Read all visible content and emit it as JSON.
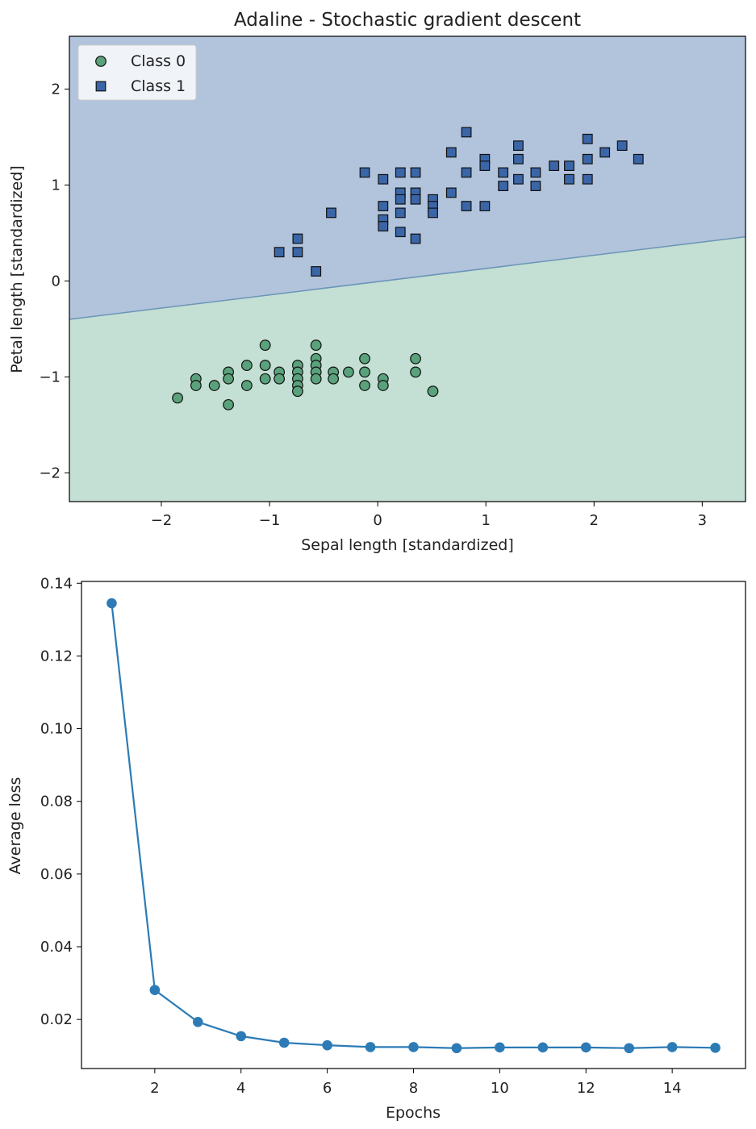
{
  "chart_data": [
    {
      "type": "scatter",
      "title": "Adaline - Stochastic gradient descent",
      "xlabel": "Sepal length [standardized]",
      "ylabel": "Petal length [standardized]",
      "xlim": [
        -2.85,
        3.4
      ],
      "ylim": [
        -2.3,
        2.55
      ],
      "xticks": [
        -2,
        -1,
        0,
        1,
        2,
        3
      ],
      "yticks": [
        -2,
        -1,
        0,
        1,
        2
      ],
      "xtick_labels": [
        "−2",
        "−1",
        "0",
        "1",
        "2",
        "3"
      ],
      "ytick_labels": [
        "−2",
        "−1",
        "0",
        "1",
        "2"
      ],
      "grid": false,
      "legend_position": "top-left",
      "decision_boundary": {
        "x": [
          -2.85,
          3.4
        ],
        "y": [
          -0.4,
          0.46
        ]
      },
      "regions": [
        {
          "class": "Class 1",
          "side": "above",
          "color": "#b2c3dc"
        },
        {
          "class": "Class 0",
          "side": "below",
          "color": "#c4dfd3"
        }
      ],
      "series": [
        {
          "name": "Class 0",
          "marker": "circle",
          "color": "#5aa27c",
          "points": [
            [
              -1.85,
              -1.22
            ],
            [
              -1.68,
              -1.02
            ],
            [
              -1.68,
              -1.09
            ],
            [
              -1.51,
              -1.09
            ],
            [
              -1.38,
              -0.95
            ],
            [
              -1.38,
              -1.02
            ],
            [
              -1.38,
              -1.29
            ],
            [
              -1.21,
              -0.88
            ],
            [
              -1.21,
              -1.09
            ],
            [
              -1.04,
              -0.67
            ],
            [
              -1.04,
              -0.88
            ],
            [
              -1.04,
              -1.02
            ],
            [
              -0.91,
              -0.95
            ],
            [
              -0.91,
              -1.02
            ],
            [
              -0.74,
              -0.88
            ],
            [
              -0.74,
              -0.95
            ],
            [
              -0.74,
              -1.02
            ],
            [
              -0.74,
              -1.09
            ],
            [
              -0.74,
              -1.15
            ],
            [
              -0.57,
              -0.67
            ],
            [
              -0.57,
              -0.81
            ],
            [
              -0.57,
              -0.88
            ],
            [
              -0.57,
              -0.95
            ],
            [
              -0.57,
              -1.02
            ],
            [
              -0.41,
              -0.95
            ],
            [
              -0.41,
              -1.02
            ],
            [
              -0.27,
              -0.95
            ],
            [
              -0.12,
              -0.81
            ],
            [
              -0.12,
              -0.95
            ],
            [
              -0.12,
              -1.09
            ],
            [
              0.05,
              -1.02
            ],
            [
              0.05,
              -1.09
            ],
            [
              0.35,
              -0.81
            ],
            [
              0.35,
              -0.95
            ],
            [
              0.51,
              -1.15
            ]
          ]
        },
        {
          "name": "Class 1",
          "marker": "square",
          "color": "#3a66a8",
          "points": [
            [
              -0.91,
              0.3
            ],
            [
              -0.74,
              0.3
            ],
            [
              -0.74,
              0.44
            ],
            [
              -0.57,
              0.1
            ],
            [
              -0.43,
              0.71
            ],
            [
              -0.12,
              1.13
            ],
            [
              0.05,
              1.06
            ],
            [
              0.05,
              0.78
            ],
            [
              0.05,
              0.64
            ],
            [
              0.05,
              0.57
            ],
            [
              0.21,
              1.13
            ],
            [
              0.21,
              0.92
            ],
            [
              0.21,
              0.85
            ],
            [
              0.21,
              0.71
            ],
            [
              0.21,
              0.51
            ],
            [
              0.35,
              1.13
            ],
            [
              0.35,
              0.92
            ],
            [
              0.35,
              0.85
            ],
            [
              0.35,
              0.44
            ],
            [
              0.51,
              0.85
            ],
            [
              0.51,
              0.78
            ],
            [
              0.51,
              0.71
            ],
            [
              0.68,
              1.34
            ],
            [
              0.68,
              0.92
            ],
            [
              0.82,
              1.55
            ],
            [
              0.82,
              1.13
            ],
            [
              0.82,
              0.78
            ],
            [
              0.99,
              1.27
            ],
            [
              0.99,
              1.2
            ],
            [
              0.99,
              0.78
            ],
            [
              1.16,
              1.13
            ],
            [
              1.16,
              0.99
            ],
            [
              1.3,
              1.41
            ],
            [
              1.3,
              1.27
            ],
            [
              1.3,
              1.06
            ],
            [
              1.46,
              1.13
            ],
            [
              1.46,
              0.99
            ],
            [
              1.63,
              1.2
            ],
            [
              1.77,
              1.2
            ],
            [
              1.77,
              1.06
            ],
            [
              1.94,
              1.48
            ],
            [
              1.94,
              1.27
            ],
            [
              1.94,
              1.06
            ],
            [
              2.1,
              1.34
            ],
            [
              2.26,
              1.41
            ],
            [
              2.41,
              1.27
            ]
          ]
        }
      ]
    },
    {
      "type": "line",
      "title": "",
      "xlabel": "Epochs",
      "ylabel": "Average loss",
      "xlim": [
        0.3,
        15.7
      ],
      "ylim": [
        0.0065,
        0.1405
      ],
      "xticks": [
        2,
        4,
        6,
        8,
        10,
        12,
        14
      ],
      "yticks": [
        0.02,
        0.04,
        0.06,
        0.08,
        0.1,
        0.12,
        0.14
      ],
      "xtick_labels": [
        "2",
        "4",
        "6",
        "8",
        "10",
        "12",
        "14"
      ],
      "ytick_labels": [
        "0.02",
        "0.04",
        "0.06",
        "0.08",
        "0.10",
        "0.12",
        "0.14"
      ],
      "grid": false,
      "color": "#2c7bb6",
      "series": [
        {
          "x": [
            1,
            2,
            3,
            4,
            5,
            6,
            7,
            8,
            9,
            10,
            11,
            12,
            13,
            14,
            15
          ],
          "y": [
            0.1345,
            0.0281,
            0.0193,
            0.0154,
            0.0136,
            0.0129,
            0.0124,
            0.0124,
            0.0121,
            0.0123,
            0.0123,
            0.0123,
            0.0121,
            0.0124,
            0.0122
          ]
        }
      ]
    }
  ]
}
